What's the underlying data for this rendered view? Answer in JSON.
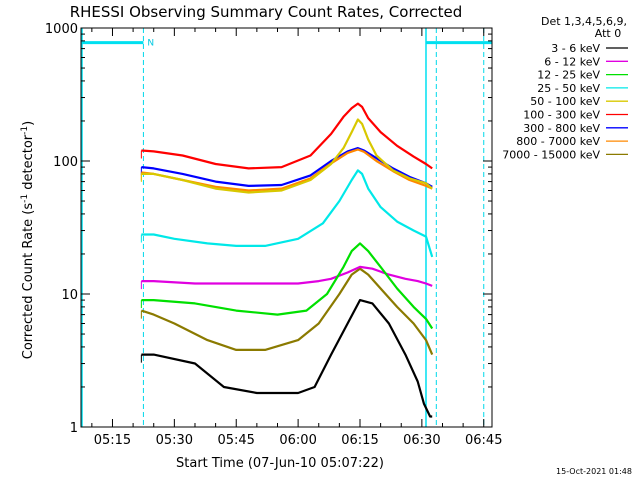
{
  "chart_data": {
    "type": "line",
    "title": "RHESSI Observing Summary Count Rates, Corrected",
    "xlabel": "Start Time (07-Jun-10 05:07:22)",
    "ylabel": "Corrected Count Rate (s⁻¹ detector⁻¹)",
    "ylabel_main": "Corrected Count Rate (s",
    "ylabel_sup1": "-1",
    "ylabel_mid": " detector",
    "ylabel_sup2": "-1",
    "ylabel_end": ")",
    "yscale": "log",
    "ylim": [
      1,
      1000
    ],
    "xlim": [
      "05:07:22",
      "06:47:00"
    ],
    "x_ticks": [
      "05:15",
      "05:30",
      "05:45",
      "06:00",
      "06:15",
      "06:30",
      "06:45"
    ],
    "y_ticks": [
      "1",
      "10",
      "100",
      "1000"
    ],
    "x_tick_minutes": [
      15,
      30,
      45,
      60,
      75,
      90,
      105
    ],
    "x_range_minutes": [
      7.37,
      107
    ],
    "legend_header": [
      "Det 1,3,4,5,6,9,",
      "Att 0"
    ],
    "legend_placement": "right, outside plot",
    "timestamp": "15-Oct-2021 01:48",
    "night_marker": "N",
    "night_periods": [
      {
        "start": 7.37,
        "end": 22.5
      },
      {
        "start": 91.0,
        "end": 107.0
      }
    ],
    "night_dashed_lines_minutes": [
      22.5,
      93.5,
      105.0
    ],
    "night_bar_log_y": 2.89,
    "data_start_minute": 22.0,
    "data_end_minute": 92.5,
    "series": [
      {
        "name": "3 - 6 keV",
        "color": "#000000",
        "x": [
          22,
          25,
          35,
          42,
          50,
          55,
          60,
          64,
          68,
          72,
          75,
          78,
          82,
          86,
          89,
          90.5,
          92,
          92.5
        ],
        "y": [
          3.5,
          3.5,
          3.0,
          2.0,
          1.8,
          1.8,
          1.8,
          2.0,
          3.5,
          6.0,
          9.0,
          8.5,
          6.0,
          3.5,
          2.2,
          1.5,
          1.2,
          1.2
        ]
      },
      {
        "name": "6 - 12 keV",
        "color": "#e000e0",
        "x": [
          22,
          25,
          35,
          45,
          55,
          60,
          65,
          68,
          72,
          75,
          78,
          82,
          86,
          89,
          91,
          92.5
        ],
        "y": [
          12.5,
          12.5,
          12.0,
          12.0,
          12.0,
          12.0,
          12.5,
          13.0,
          14.5,
          16.0,
          15.5,
          14.0,
          13.0,
          12.5,
          12.0,
          11.5
        ]
      },
      {
        "name": "12 - 25 keV",
        "color": "#00e000",
        "x": [
          22,
          25,
          35,
          45,
          55,
          62,
          67,
          71,
          73,
          75,
          77,
          80,
          84,
          88,
          91,
          92.5
        ],
        "y": [
          9.0,
          9.0,
          8.5,
          7.5,
          7.0,
          7.5,
          10.0,
          16.0,
          21.0,
          24.0,
          21.0,
          16.0,
          11.0,
          8.0,
          6.5,
          5.5
        ]
      },
      {
        "name": "25 - 50 keV",
        "color": "#00e8e8",
        "x": [
          22,
          25,
          30,
          38,
          45,
          52,
          60,
          66,
          70,
          73,
          74.5,
          75.5,
          77,
          80,
          84,
          88,
          91,
          92.5
        ],
        "y": [
          28,
          28,
          26,
          24,
          23,
          23,
          26,
          34,
          50,
          72,
          85,
          80,
          62,
          45,
          35,
          30,
          27,
          19
        ]
      },
      {
        "name": "50 - 100 keV",
        "color": "#d8c800",
        "x": [
          22,
          25,
          32,
          40,
          48,
          56,
          63,
          68,
          71,
          73,
          74.5,
          75.5,
          77,
          79,
          83,
          87,
          91,
          92.5
        ],
        "y": [
          80,
          80,
          72,
          62,
          58,
          60,
          72,
          95,
          125,
          165,
          205,
          190,
          145,
          110,
          85,
          74,
          68,
          62
        ]
      },
      {
        "name": "100 - 300 keV",
        "color": "#ff0000",
        "x": [
          22,
          25,
          32,
          40,
          48,
          56,
          63,
          68,
          71,
          73,
          74.5,
          75.5,
          77,
          80,
          84,
          88,
          91,
          92.5
        ],
        "y": [
          120,
          118,
          110,
          95,
          88,
          90,
          110,
          160,
          215,
          250,
          270,
          255,
          210,
          165,
          130,
          108,
          95,
          88
        ]
      },
      {
        "name": "300 - 800 keV",
        "color": "#0000ff",
        "x": [
          22,
          25,
          32,
          40,
          48,
          56,
          63,
          68,
          72,
          74.5,
          76,
          79,
          83,
          87,
          91,
          92.5
        ],
        "y": [
          90,
          88,
          80,
          70,
          65,
          66,
          78,
          100,
          118,
          125,
          120,
          105,
          88,
          76,
          68,
          64
        ]
      },
      {
        "name": "800 - 7000 keV",
        "color": "#ff8800",
        "x": [
          22,
          25,
          32,
          40,
          48,
          56,
          63,
          68,
          72,
          74.5,
          76,
          79,
          83,
          87,
          91,
          92.5
        ],
        "y": [
          82,
          80,
          72,
          64,
          60,
          62,
          74,
          96,
          115,
          122,
          117,
          100,
          84,
          72,
          65,
          62
        ]
      },
      {
        "name": "7000 - 15000 keV",
        "color": "#8b7a00",
        "x": [
          22,
          25,
          30,
          38,
          45,
          52,
          60,
          65,
          70,
          73,
          75,
          77,
          80,
          84,
          88,
          91,
          92.5
        ],
        "y": [
          7.5,
          7.0,
          6.0,
          4.5,
          3.8,
          3.8,
          4.5,
          6.0,
          10.0,
          14.0,
          15.5,
          14.0,
          11.0,
          8.0,
          6.0,
          4.5,
          3.5
        ]
      }
    ]
  }
}
